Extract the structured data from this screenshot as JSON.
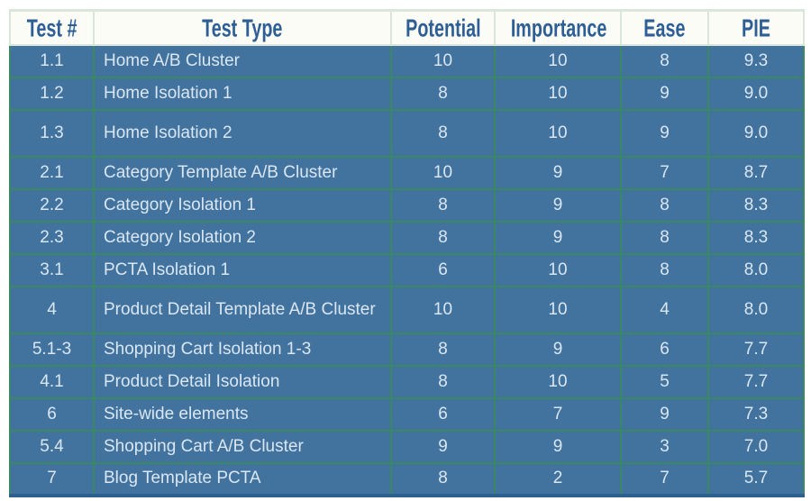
{
  "chart_data": {
    "type": "table",
    "title": "",
    "columns": [
      "Test #",
      "Test Type",
      "Potential",
      "Importance",
      "Ease",
      "PIE"
    ],
    "rows": [
      [
        "1.1",
        "Home A/B Cluster",
        "10",
        "10",
        "8",
        "9.3"
      ],
      [
        "1.2",
        "Home Isolation 1",
        "8",
        "10",
        "9",
        "9.0"
      ],
      [
        "1.3",
        "Home Isolation 2",
        "8",
        "10",
        "9",
        "9.0"
      ],
      [
        "2.1",
        "Category Template A/B Cluster",
        "10",
        "9",
        "7",
        "8.7"
      ],
      [
        "2.2",
        "Category Isolation 1",
        "8",
        "9",
        "8",
        "8.3"
      ],
      [
        "2.3",
        "Category Isolation 2",
        "8",
        "9",
        "8",
        "8.3"
      ],
      [
        "3.1",
        "PCTA Isolation 1",
        "6",
        "10",
        "8",
        "8.0"
      ],
      [
        "4",
        "Product Detail Template A/B Cluster",
        "10",
        "10",
        "4",
        "8.0"
      ],
      [
        "5.1-3",
        "Shopping Cart Isolation 1-3",
        "8",
        "9",
        "6",
        "7.7"
      ],
      [
        "4.1",
        "Product Detail Isolation",
        "8",
        "10",
        "5",
        "7.7"
      ],
      [
        "6",
        "Site-wide elements",
        "6",
        "7",
        "9",
        "7.3"
      ],
      [
        "5.4",
        "Shopping Cart A/B Cluster",
        "9",
        "9",
        "3",
        "7.0"
      ],
      [
        "7",
        "Blog Template PCTA",
        "8",
        "2",
        "7",
        "5.7"
      ]
    ],
    "layout": {
      "grid": "on",
      "header_position": "top"
    }
  },
  "colors": {
    "cell_blue": "#42739f",
    "grid_green": "#3b8763",
    "header_bg": "#fcfcf6",
    "header_border": "#d9e6d9",
    "header_text": "#2d5f96",
    "body_text": "#dae6f2",
    "bottom_edge": "#2d5f90"
  }
}
